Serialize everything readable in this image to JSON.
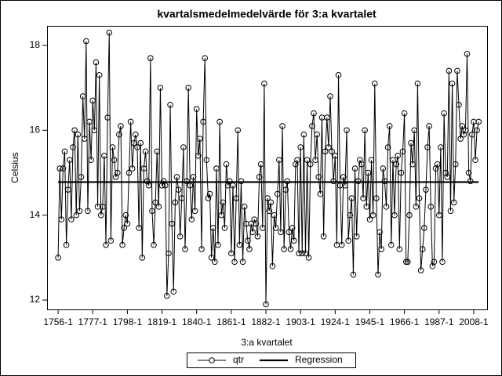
{
  "chart_data": {
    "type": "line",
    "title": "kvartalsmedelmedelvärde för 3:a kvartalet",
    "x_label": "3:a kvartalet",
    "y_label": "Celsius",
    "x": [
      1756,
      1757,
      1758,
      1759,
      1760,
      1761,
      1762,
      1763,
      1764,
      1765,
      1766,
      1767,
      1768,
      1769,
      1770,
      1771,
      1772,
      1773,
      1774,
      1775,
      1776,
      1777,
      1778,
      1779,
      1780,
      1781,
      1782,
      1783,
      1784,
      1785,
      1786,
      1787,
      1788,
      1789,
      1790,
      1791,
      1792,
      1793,
      1794,
      1795,
      1796,
      1797,
      1798,
      1799,
      1800,
      1801,
      1802,
      1803,
      1804,
      1805,
      1806,
      1807,
      1808,
      1809,
      1810,
      1811,
      1812,
      1813,
      1814,
      1815,
      1816,
      1817,
      1818,
      1819,
      1820,
      1821,
      1822,
      1823,
      1824,
      1825,
      1826,
      1827,
      1828,
      1829,
      1830,
      1831,
      1832,
      1833,
      1834,
      1835,
      1836,
      1837,
      1838,
      1839,
      1840,
      1841,
      1842,
      1843,
      1844,
      1845,
      1846,
      1847,
      1848,
      1849,
      1850,
      1851,
      1852,
      1853,
      1854,
      1855,
      1856,
      1857,
      1858,
      1859,
      1860,
      1861,
      1862,
      1863,
      1864,
      1865,
      1866,
      1867,
      1868,
      1869,
      1870,
      1871,
      1872,
      1873,
      1874,
      1875,
      1876,
      1877,
      1878,
      1879,
      1880,
      1881,
      1882,
      1883,
      1884,
      1885,
      1886,
      1887,
      1888,
      1889,
      1890,
      1891,
      1892,
      1893,
      1894,
      1895,
      1896,
      1897,
      1898,
      1899,
      1900,
      1901,
      1902,
      1903,
      1904,
      1905,
      1906,
      1907,
      1908,
      1909,
      1910,
      1911,
      1912,
      1913,
      1914,
      1915,
      1916,
      1917,
      1918,
      1919,
      1920,
      1921,
      1922,
      1923,
      1924,
      1925,
      1926,
      1927,
      1928,
      1929,
      1930,
      1931,
      1932,
      1933,
      1934,
      1935,
      1936,
      1937,
      1938,
      1939,
      1940,
      1941,
      1942,
      1943,
      1944,
      1945,
      1946,
      1947,
      1948,
      1949,
      1950,
      1951,
      1952,
      1953,
      1954,
      1955,
      1956,
      1957,
      1958,
      1959,
      1960,
      1961,
      1962,
      1963,
      1964,
      1965,
      1966,
      1967,
      1968,
      1969,
      1970,
      1971,
      1972,
      1973,
      1974,
      1975,
      1976,
      1977,
      1978,
      1979,
      1980,
      1981,
      1982,
      1983,
      1984,
      1985,
      1986,
      1987,
      1988,
      1989,
      1990,
      1991,
      1992,
      1993,
      1994,
      1995,
      1996,
      1997,
      1998,
      1999,
      2000,
      2001,
      2002,
      2003,
      2004,
      2005,
      2006,
      2007,
      2008,
      2009,
      2010,
      2011
    ],
    "series": [
      {
        "name": "qtr",
        "color": "#000000",
        "marker": "circle",
        "values": [
          13.0,
          15.1,
          13.9,
          15.1,
          15.5,
          13.3,
          14.6,
          15.3,
          13.9,
          15.6,
          16.0,
          14.0,
          15.9,
          14.1,
          14.9,
          16.8,
          15.8,
          18.1,
          14.1,
          16.2,
          15.3,
          16.7,
          16.0,
          17.6,
          14.2,
          17.3,
          14.0,
          14.2,
          15.4,
          13.3,
          16.3,
          18.3,
          13.4,
          15.6,
          15.3,
          14.9,
          15.0,
          15.9,
          16.1,
          13.3,
          13.7,
          14.0,
          13.8,
          15.0,
          16.2,
          15.1,
          15.7,
          15.9,
          15.6,
          13.7,
          15.7,
          13.0,
          15.1,
          15.5,
          14.8,
          14.7,
          17.7,
          14.1,
          13.3,
          14.3,
          15.5,
          14.2,
          17.0,
          14.7,
          14.8,
          14.7,
          12.1,
          13.1,
          16.6,
          13.8,
          12.2,
          14.3,
          14.9,
          14.6,
          13.5,
          14.4,
          15.6,
          13.2,
          14.8,
          17.0,
          14.7,
          13.9,
          14.9,
          14.1,
          16.5,
          15.4,
          15.8,
          13.2,
          16.2,
          17.7,
          15.3,
          14.4,
          14.5,
          13.0,
          13.7,
          12.9,
          15.1,
          13.3,
          16.2,
          14.0,
          14.3,
          13.7,
          15.2,
          14.7,
          14.8,
          13.1,
          14.7,
          12.9,
          14.4,
          16.0,
          13.3,
          14.8,
          12.9,
          14.2,
          13.8,
          13.4,
          13.2,
          13.8,
          13.6,
          13.9,
          13.8,
          13.5,
          14.9,
          15.2,
          13.7,
          17.1,
          11.9,
          14.4,
          14.1,
          14.3,
          12.8,
          14.0,
          13.7,
          14.5,
          15.3,
          13.6,
          16.1,
          13.2,
          14.6,
          14.8,
          13.6,
          13.2,
          13.7,
          13.4,
          15.2,
          15.3,
          13.1,
          15.6,
          13.1,
          15.9,
          13.1,
          15.3,
          13.0,
          15.2,
          16.1,
          16.4,
          15.3,
          15.9,
          14.9,
          14.5,
          16.3,
          13.5,
          15.5,
          16.3,
          15.6,
          16.8,
          15.5,
          14.8,
          15.4,
          13.3,
          17.3,
          14.7,
          13.3,
          14.9,
          14.7,
          16.0,
          13.4,
          14.0,
          14.4,
          12.6,
          15.1,
          13.5,
          14.8,
          15.3,
          15.2,
          14.4,
          16.0,
          14.2,
          15.0,
          13.9,
          15.3,
          14.0,
          17.1,
          14.4,
          12.6,
          13.6,
          13.2,
          15.1,
          14.8,
          14.2,
          15.6,
          16.1,
          13.3,
          15.3,
          14.0,
          15.2,
          15.4,
          13.2,
          15.0,
          15.5,
          16.4,
          12.9,
          12.9,
          14.0,
          15.7,
          15.2,
          16.0,
          14.2,
          17.1,
          14.4,
          12.7,
          13.2,
          13.7,
          14.6,
          15.6,
          16.1,
          14.2,
          12.8,
          12.9,
          15.1,
          15.2,
          14.0,
          15.6,
          12.9,
          16.4,
          15.0,
          14.9,
          17.4,
          14.1,
          17.1,
          14.3,
          15.2,
          17.4,
          16.6,
          15.8,
          16.1,
          15.9,
          16.0,
          17.8,
          15.0,
          14.8,
          15.9,
          16.2,
          15.3,
          16.0,
          16.2
        ]
      },
      {
        "name": "Regression",
        "color": "#000000",
        "marker": "none",
        "x": [
          1756,
          2011
        ],
        "values": [
          14.78,
          14.78
        ]
      }
    ],
    "xlim": [
      1749.3,
      2016.6
    ],
    "xticks": [
      {
        "value": 1756,
        "label": "1756-1"
      },
      {
        "value": 1777,
        "label": "1777-1"
      },
      {
        "value": 1798,
        "label": "1798-1"
      },
      {
        "value": 1819,
        "label": "1819-1"
      },
      {
        "value": 1840,
        "label": "1840-1"
      },
      {
        "value": 1861,
        "label": "1861-1"
      },
      {
        "value": 1882,
        "label": "1882-1"
      },
      {
        "value": 1903,
        "label": "1903-1"
      },
      {
        "value": 1924,
        "label": "1924-1"
      },
      {
        "value": 1945,
        "label": "1945-1"
      },
      {
        "value": 1966,
        "label": "1966-1"
      },
      {
        "value": 1987,
        "label": "1987-1"
      },
      {
        "value": 2008,
        "label": "2008-1"
      }
    ],
    "ylim": [
      11.78,
      18.46
    ],
    "yticks": [
      12,
      14,
      16,
      18
    ],
    "grid": false,
    "legend": "bottom"
  }
}
